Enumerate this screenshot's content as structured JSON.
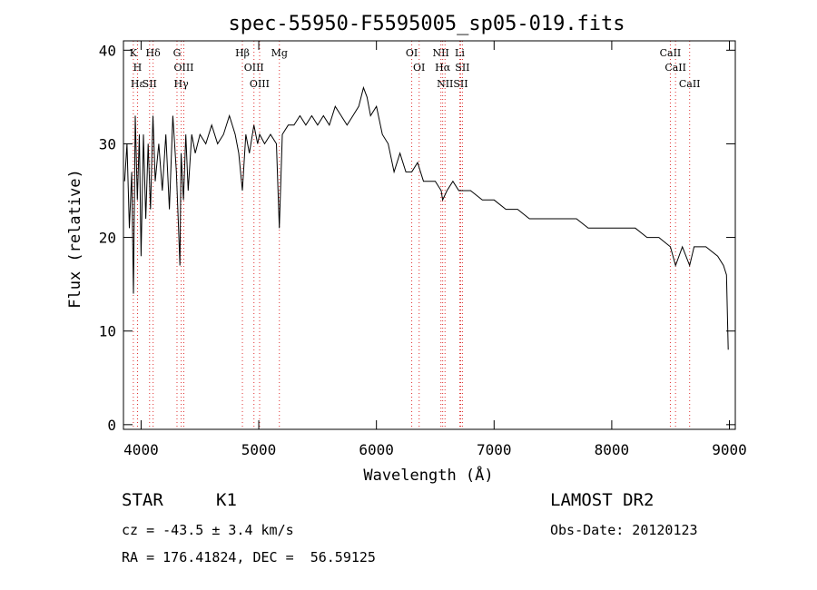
{
  "chart_data": {
    "type": "line",
    "title": "spec-55950-F5595005_sp05-019.fits",
    "xlabel": "Wavelength (Å)",
    "ylabel": "Flux (relative)",
    "xlim": [
      3850,
      9050
    ],
    "ylim": [
      -0.5,
      41
    ],
    "xticks": [
      4000,
      5000,
      6000,
      7000,
      8000,
      9000
    ],
    "yticks": [
      0,
      10,
      20,
      30,
      40
    ],
    "grid": false,
    "series": [
      {
        "color": "#000000",
        "x": [
          3860,
          3880,
          3900,
          3920,
          3935,
          3950,
          3968,
          3985,
          4000,
          4020,
          4040,
          4060,
          4080,
          4101,
          4120,
          4150,
          4180,
          4210,
          4240,
          4270,
          4300,
          4315,
          4330,
          4340,
          4360,
          4380,
          4400,
          4430,
          4460,
          4500,
          4550,
          4600,
          4650,
          4700,
          4750,
          4800,
          4830,
          4861,
          4890,
          4920,
          4959,
          4990,
          5007,
          5050,
          5100,
          5150,
          5175,
          5200,
          5250,
          5300,
          5350,
          5400,
          5450,
          5500,
          5550,
          5600,
          5650,
          5700,
          5750,
          5800,
          5850,
          5890,
          5920,
          5950,
          6000,
          6050,
          6100,
          6150,
          6200,
          6250,
          6300,
          6350,
          6400,
          6450,
          6500,
          6550,
          6563,
          6600,
          6650,
          6700,
          6750,
          6800,
          6900,
          7000,
          7100,
          7200,
          7300,
          7400,
          7500,
          7600,
          7700,
          7800,
          7900,
          8000,
          8100,
          8200,
          8300,
          8400,
          8498,
          8542,
          8600,
          8662,
          8700,
          8800,
          8900,
          8950,
          8975,
          8990
        ],
        "y": [
          26,
          30,
          21,
          27,
          14,
          33,
          24,
          31,
          18,
          31,
          22,
          30,
          23,
          33,
          26,
          30,
          25,
          31,
          23,
          33,
          27,
          22,
          17,
          29,
          24,
          31,
          25,
          31,
          29,
          31,
          30,
          32,
          30,
          31,
          33,
          31,
          29,
          25,
          31,
          29,
          32,
          30,
          31,
          30,
          31,
          30,
          21,
          31,
          32,
          32,
          33,
          32,
          33,
          32,
          33,
          32,
          34,
          33,
          32,
          33,
          34,
          36,
          35,
          33,
          34,
          31,
          30,
          27,
          29,
          27,
          27,
          28,
          26,
          26,
          26,
          25,
          24,
          25,
          26,
          25,
          25,
          25,
          24,
          24,
          23,
          23,
          22,
          22,
          22,
          22,
          22,
          21,
          21,
          21,
          21,
          21,
          20,
          20,
          19,
          17,
          19,
          17,
          19,
          19,
          18,
          17,
          16,
          8
        ]
      }
    ],
    "line_markers": [
      {
        "label": "K",
        "wavelength": 3934
      },
      {
        "label": "H",
        "wavelength": 3969
      },
      {
        "label": "Hε",
        "wavelength": 3970
      },
      {
        "label": "Hδ",
        "wavelength": 4102
      },
      {
        "label": "SII",
        "wavelength": 4072
      },
      {
        "label": "G",
        "wavelength": 4305
      },
      {
        "label": "OIII",
        "wavelength": 4363
      },
      {
        "label": "Hγ",
        "wavelength": 4341
      },
      {
        "label": "Hβ",
        "wavelength": 4861
      },
      {
        "label": "OIII",
        "wavelength": 4959
      },
      {
        "label": "OIII",
        "wavelength": 5007
      },
      {
        "label": "Mg",
        "wavelength": 5175
      },
      {
        "label": "OI",
        "wavelength": 6300
      },
      {
        "label": "OI",
        "wavelength": 6363
      },
      {
        "label": "NII",
        "wavelength": 6548
      },
      {
        "label": "Hα",
        "wavelength": 6563
      },
      {
        "label": "NII",
        "wavelength": 6583
      },
      {
        "label": "SII",
        "wavelength": 6716
      },
      {
        "label": "Li",
        "wavelength": 6708
      },
      {
        "label": "SII",
        "wavelength": 6731
      },
      {
        "label": "CaII",
        "wavelength": 8498
      },
      {
        "label": "CaII",
        "wavelength": 8542
      },
      {
        "label": "CaII",
        "wavelength": 8662
      }
    ],
    "marker_color": "#e03030"
  },
  "info": {
    "class_label": "STAR",
    "subclass": "K1",
    "survey": "LAMOST DR2",
    "redshift": "cz = -43.5 ± 3.4 km/s",
    "obs_date": "Obs-Date: 20120123",
    "coords": "RA = 176.41824, DEC =  56.59125"
  }
}
